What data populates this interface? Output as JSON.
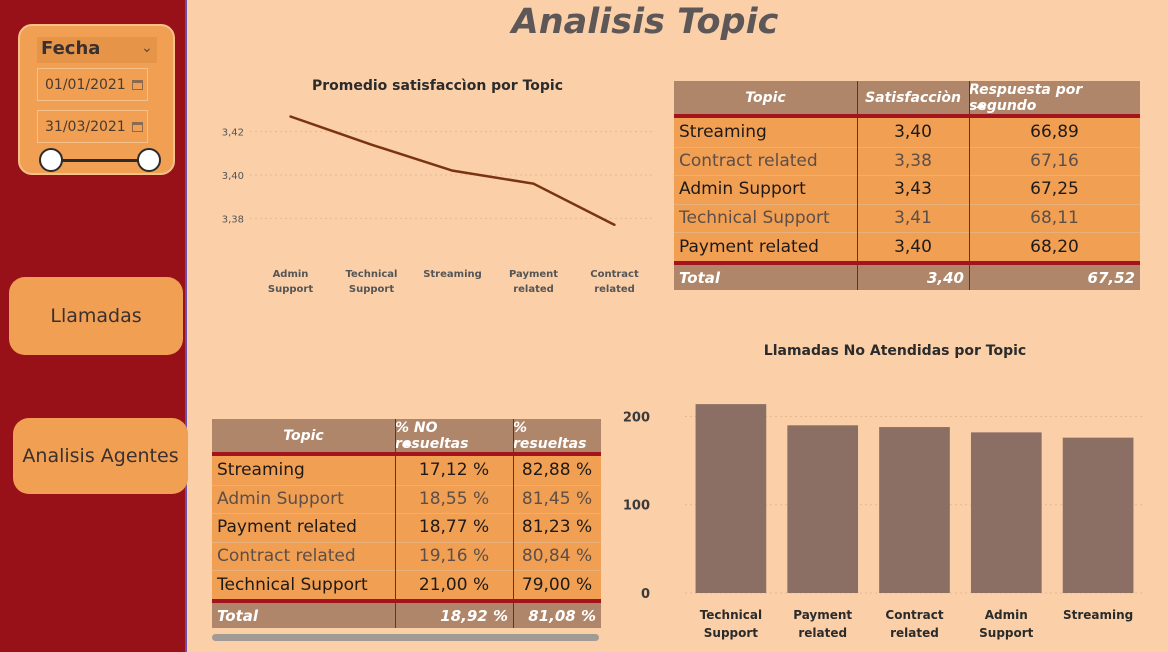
{
  "page_title": "Analisis Topic",
  "sidebar": {
    "date_slicer": {
      "title": "Fecha",
      "start": "01/01/2021",
      "end": "31/03/2021"
    },
    "nav": [
      "Llamadas",
      "Analisis Agentes"
    ]
  },
  "colors": {
    "sidebar_bg": "#991118",
    "page_bg": "#fbd0a9",
    "table_header": "#b0866a",
    "table_body": "#f09f53",
    "line": "#7b3411",
    "bar": "#8b6e64"
  },
  "satisfaction_table": {
    "headers": [
      "Topic",
      "Satisfacciòn",
      "Respuesta por segundo"
    ],
    "rows": [
      {
        "topic": "Streaming",
        "sat": "3,40",
        "resp": "66,89"
      },
      {
        "topic": "Contract related",
        "sat": "3,38",
        "resp": "67,16"
      },
      {
        "topic": "Admin Support",
        "sat": "3,43",
        "resp": "67,25"
      },
      {
        "topic": "Technical Support",
        "sat": "3,41",
        "resp": "68,11"
      },
      {
        "topic": "Payment related",
        "sat": "3,40",
        "resp": "68,20"
      }
    ],
    "total": {
      "label": "Total",
      "sat": "3,40",
      "resp": "67,52"
    }
  },
  "resolution_table": {
    "headers": [
      "Topic",
      "% NO resueltas",
      "% resueltas"
    ],
    "rows": [
      {
        "topic": "Streaming",
        "no": "17,12 %",
        "yes": "82,88 %"
      },
      {
        "topic": "Admin Support",
        "no": "18,55 %",
        "yes": "81,45 %"
      },
      {
        "topic": "Payment related",
        "no": "18,77 %",
        "yes": "81,23 %"
      },
      {
        "topic": "Contract related",
        "no": "19,16 %",
        "yes": "80,84 %"
      },
      {
        "topic": "Technical Support",
        "no": "21,00 %",
        "yes": "79,00 %"
      }
    ],
    "total": {
      "label": "Total",
      "no": "18,92 %",
      "yes": "81,08 %"
    }
  },
  "chart_data": [
    {
      "type": "line",
      "title": "Promedio satisfaccìon por Topic",
      "categories": [
        "Admin Support",
        "Technical Support",
        "Streaming",
        "Payment related",
        "Contract related"
      ],
      "values": [
        3.427,
        3.414,
        3.402,
        3.396,
        3.377
      ],
      "ylim": [
        3.37,
        3.43
      ],
      "yticks": [
        "3,42",
        "3,40",
        "3,38"
      ],
      "ytick_values": [
        3.42,
        3.4,
        3.38
      ],
      "grid": true
    },
    {
      "type": "bar",
      "title": "Llamadas No Atendidas por Topic",
      "categories": [
        "Technical Support",
        "Payment related",
        "Contract related",
        "Admin Support",
        "Streaming"
      ],
      "values": [
        214,
        190,
        188,
        182,
        176
      ],
      "ylim": [
        0,
        230
      ],
      "yticks": [
        "200",
        "100",
        "0"
      ],
      "ytick_values": [
        200,
        100,
        0
      ],
      "grid": true
    }
  ]
}
